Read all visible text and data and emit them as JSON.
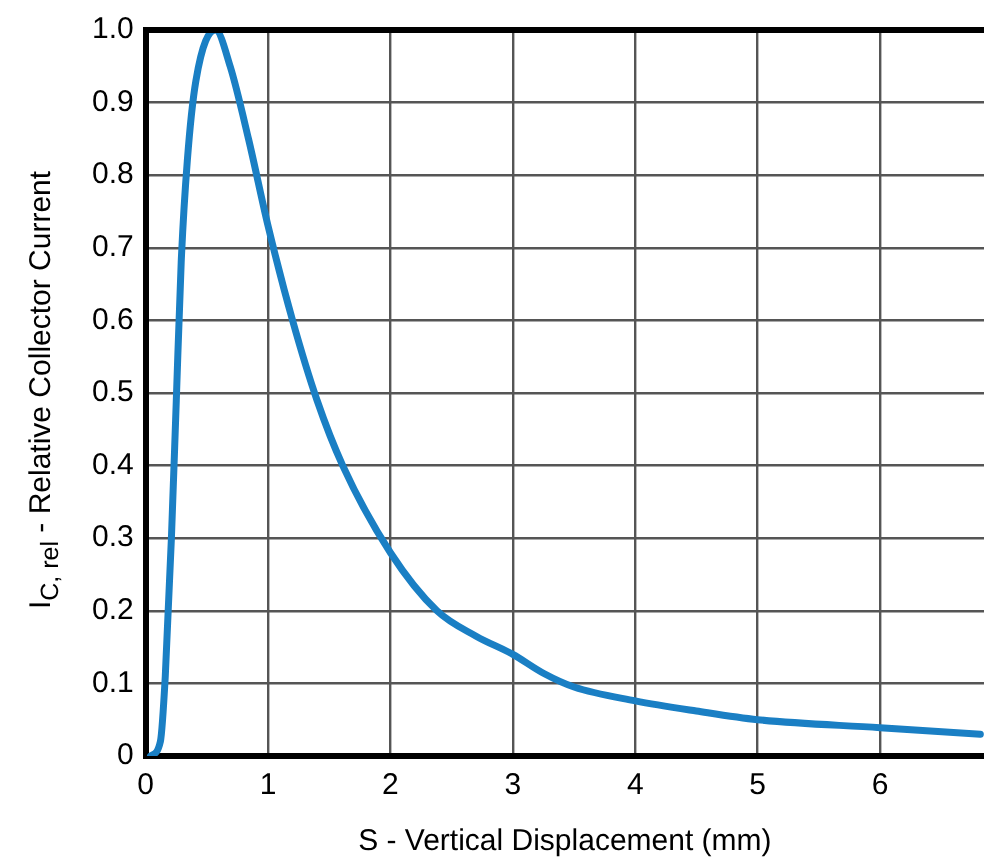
{
  "chart_data": {
    "type": "line",
    "xlabel": "S - Vertical Displacement (mm)",
    "ylabel": "I$_{C, rel}$ - Relative Collector Current",
    "x": [
      0.04,
      0.12,
      0.16,
      0.21,
      0.25,
      0.29,
      0.34,
      0.41,
      0.57,
      0.69,
      0.84,
      1.0,
      1.2,
      1.4,
      1.61,
      2.0,
      2.38,
      2.7,
      3.0,
      3.25,
      3.5,
      4.0,
      4.5,
      5.0,
      6.0,
      6.82
    ],
    "series": [
      {
        "color": "#1a7fc4",
        "values": [
          0,
          0.02,
          0.11,
          0.3,
          0.49,
          0.68,
          0.82,
          0.93,
          1.0,
          0.95,
          0.85,
          0.73,
          0.6,
          0.49,
          0.4,
          0.28,
          0.2,
          0.165,
          0.14,
          0.114,
          0.095,
          0.076,
          0.062,
          0.05,
          0.039,
          0.03
        ]
      }
    ],
    "xlim": [
      0,
      6.85
    ],
    "xticks": [
      0,
      1,
      2,
      3,
      4,
      5,
      6
    ],
    "ylim": [
      0,
      1
    ],
    "yticks": [
      0,
      0.1,
      0.2,
      0.3,
      0.4,
      0.5,
      0.6,
      0.7,
      0.8,
      0.9,
      {
        "value": 1,
        "label": "1.0"
      }
    ],
    "grid": true,
    "legend": false,
    "marker": "none",
    "line_style": "solid"
  }
}
